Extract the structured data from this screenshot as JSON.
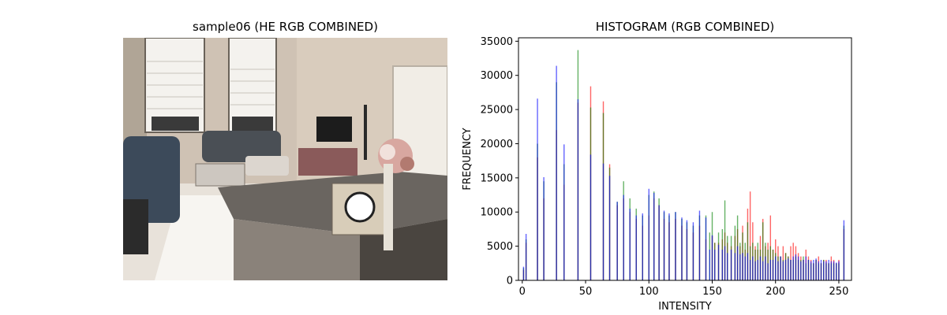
{
  "left_panel": {
    "title": "sample06 (HE RGB COMBINED)"
  },
  "colors": {
    "red": "#ff0000",
    "green": "#008000",
    "blue": "#0000ff",
    "axis": "#000000"
  },
  "chart_data": {
    "type": "bar",
    "title": "HISTOGRAM (RGB COMBINED)",
    "xlabel": "INTENSITY",
    "ylabel": "FREQUENCY",
    "xlim": [
      -3,
      260
    ],
    "ylim": [
      0,
      35500
    ],
    "x_ticks": [
      0,
      50,
      100,
      150,
      200,
      250
    ],
    "y_ticks": [
      0,
      5000,
      10000,
      15000,
      20000,
      25000,
      30000,
      35000
    ],
    "bar_opacity": 0.6,
    "grid": false,
    "legend": "none",
    "series": [
      {
        "color": "red",
        "x": [
          1,
          3,
          12,
          17,
          27,
          33,
          44,
          54,
          64,
          69,
          75,
          80,
          85,
          90,
          95,
          100,
          104,
          108,
          112,
          116,
          121,
          126,
          130,
          135,
          140,
          145,
          150,
          152,
          155,
          158,
          160,
          162,
          165,
          168,
          170,
          172,
          174,
          176,
          178,
          180,
          182,
          184,
          186,
          188,
          190,
          192,
          194,
          196,
          198,
          200,
          202,
          204,
          206,
          208,
          210,
          212,
          214,
          216,
          218,
          220,
          222,
          224,
          226,
          228,
          230,
          232,
          234,
          236,
          238,
          240,
          242,
          244,
          246,
          248,
          250,
          254
        ],
        "values": [
          1500,
          5500,
          18000,
          12000,
          22000,
          14000,
          26000,
          28400,
          26200,
          17000,
          11000,
          12000,
          10000,
          9000,
          8000,
          9500,
          12000,
          11000,
          9000,
          8500,
          9000,
          8000,
          7500,
          7000,
          8000,
          6000,
          6500,
          5500,
          5500,
          6000,
          7000,
          5500,
          5000,
          6500,
          7500,
          5000,
          8000,
          4500,
          10500,
          13000,
          8500,
          5000,
          4500,
          6500,
          9000,
          5000,
          5500,
          9500,
          4500,
          6000,
          5000,
          3500,
          5000,
          4000,
          3500,
          5000,
          5500,
          5000,
          4000,
          3500,
          3000,
          4500,
          3500,
          3000,
          2500,
          3000,
          3500,
          2500,
          3000,
          3000,
          2500,
          3500,
          3000,
          2500,
          3000,
          7500
        ]
      },
      {
        "color": "green",
        "x": [
          1,
          3,
          12,
          17,
          27,
          33,
          44,
          54,
          64,
          69,
          75,
          80,
          85,
          90,
          95,
          100,
          104,
          108,
          112,
          116,
          121,
          126,
          130,
          135,
          140,
          145,
          148,
          150,
          152,
          155,
          158,
          160,
          162,
          165,
          168,
          170,
          172,
          174,
          176,
          178,
          180,
          182,
          184,
          186,
          188,
          190,
          192,
          194,
          196,
          198,
          200,
          202,
          204,
          206,
          208,
          210,
          212,
          214,
          216,
          218,
          220,
          222,
          224,
          226,
          228,
          230,
          232,
          234,
          236,
          238,
          240,
          242,
          244,
          246,
          248,
          250,
          254
        ],
        "values": [
          1800,
          6000,
          20000,
          14500,
          29000,
          17000,
          33700,
          25300,
          24500,
          16500,
          11500,
          14500,
          12000,
          10500,
          9500,
          12500,
          13000,
          12000,
          10000,
          9500,
          10000,
          9000,
          8500,
          8000,
          9500,
          9500,
          7000,
          10000,
          5500,
          7000,
          7500,
          11700,
          6500,
          6500,
          8000,
          9500,
          5500,
          7000,
          5500,
          8500,
          5000,
          5500,
          4500,
          5500,
          4500,
          8500,
          5500,
          4500,
          5000,
          4500,
          4000,
          3500,
          3500,
          3000,
          4000,
          3500,
          3000,
          3000,
          3500,
          3000,
          3000,
          3500,
          2500,
          3000,
          2500,
          2500,
          3000,
          2500,
          2500,
          3000,
          2500,
          2500,
          2500,
          2500,
          2500,
          2500,
          8000
        ]
      },
      {
        "color": "blue",
        "x": [
          1,
          3,
          12,
          17,
          27,
          33,
          44,
          54,
          64,
          69,
          75,
          80,
          85,
          90,
          95,
          100,
          104,
          108,
          112,
          116,
          121,
          126,
          130,
          135,
          140,
          145,
          148,
          150,
          152,
          155,
          158,
          160,
          162,
          165,
          168,
          170,
          172,
          174,
          176,
          178,
          180,
          182,
          184,
          186,
          188,
          190,
          192,
          194,
          196,
          198,
          200,
          202,
          204,
          206,
          208,
          210,
          212,
          214,
          216,
          218,
          220,
          222,
          224,
          226,
          228,
          230,
          232,
          234,
          236,
          238,
          240,
          242,
          244,
          246,
          248,
          250,
          254
        ],
        "values": [
          2000,
          6800,
          26600,
          15100,
          31400,
          19900,
          26500,
          18400,
          17100,
          15300,
          11500,
          12500,
          10500,
          9500,
          9800,
          13400,
          12800,
          11000,
          10200,
          9800,
          10000,
          9200,
          8800,
          8500,
          10200,
          9200,
          4500,
          6600,
          4500,
          5200,
          4500,
          5000,
          4000,
          4500,
          4000,
          5000,
          3800,
          4000,
          3500,
          4000,
          3000,
          3500,
          2800,
          3000,
          3500,
          2800,
          3500,
          2500,
          3000,
          3000,
          3500,
          2800,
          3500,
          2800,
          3000,
          3200,
          3000,
          3500,
          3800,
          3500,
          2800,
          3000,
          3500,
          3000,
          2800,
          3000,
          3200,
          2800,
          3000,
          2800,
          2800,
          3000,
          2800,
          2800,
          2600,
          2800,
          8800
        ]
      }
    ]
  }
}
